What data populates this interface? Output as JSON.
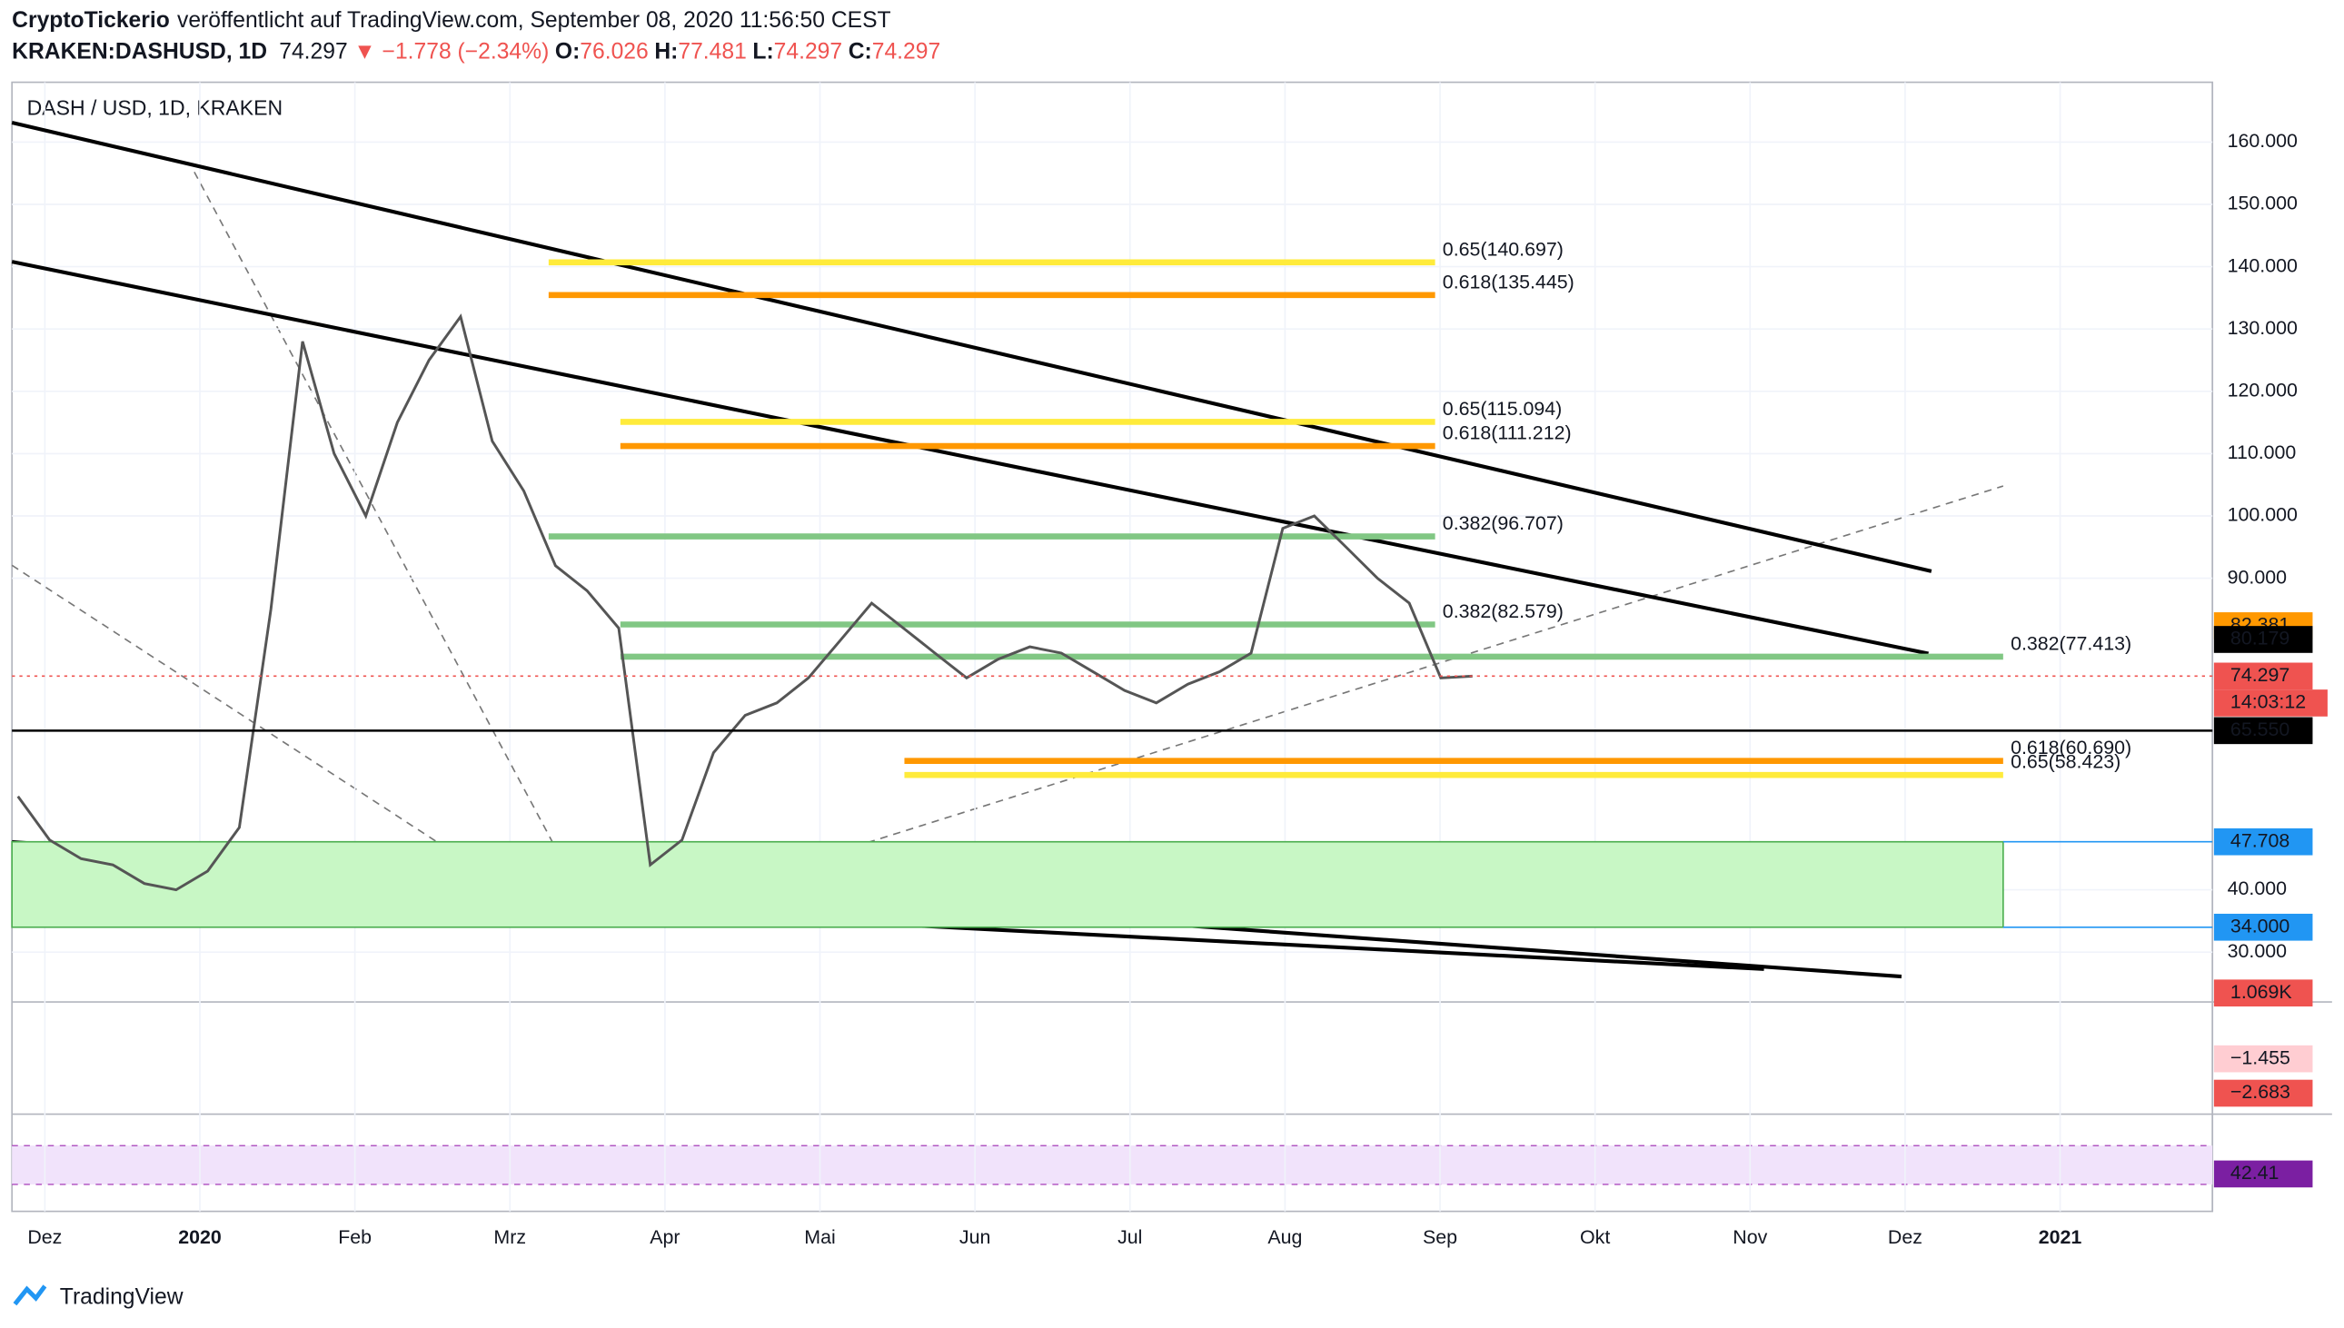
{
  "header": {
    "publisher": "CryptoTickerio",
    "published": "veröffentlicht auf TradingView.com, September 08, 2020 11:56:50 CEST",
    "symbol": "KRAKEN:DASHUSD, 1D",
    "last": "74.297",
    "change": "▼ −1.778 (−2.34%)",
    "ohlc": [
      {
        "key": "O:",
        "value": "76.026"
      },
      {
        "key": "H:",
        "value": "77.481"
      },
      {
        "key": "L:",
        "value": "74.297"
      },
      {
        "key": "C:",
        "value": "74.297"
      }
    ]
  },
  "chart_data": {
    "type": "line",
    "title": "DASH / USD, 1D, KRAKEN",
    "color": "#555555",
    "values": [
      55,
      48,
      45,
      44,
      41,
      40,
      43,
      50,
      85,
      128,
      110,
      100,
      115,
      125,
      132,
      112,
      104,
      92,
      88,
      82,
      44,
      48,
      62,
      68,
      70,
      74,
      80,
      86,
      82,
      78,
      74,
      77,
      79,
      78,
      75,
      72,
      70,
      73,
      75,
      78,
      98,
      100,
      95,
      90,
      86,
      74,
      74.297
    ],
    "ylim": [
      22,
      169.6
    ],
    "yticks": [
      {
        "value": 160,
        "label": "160.000"
      },
      {
        "value": 150,
        "label": "150.000"
      },
      {
        "value": 140,
        "label": "140.000"
      },
      {
        "value": 130,
        "label": "130.000"
      },
      {
        "value": 120,
        "label": "120.000"
      },
      {
        "value": 110,
        "label": "110.000"
      },
      {
        "value": 100,
        "label": "100.000"
      },
      {
        "value": 90,
        "label": "90.000"
      },
      {
        "value": 40,
        "label": "40.000"
      },
      {
        "value": 30,
        "label": "30.000"
      }
    ],
    "time_labels": [
      "Dez",
      "2020",
      "Feb",
      "Mrz",
      "Apr",
      "Mai",
      "Jun",
      "Jul",
      "Aug",
      "Sep",
      "Okt",
      "Nov",
      "Dez",
      "2021"
    ],
    "fib_levels": [
      {
        "label": "0.65(140.697)",
        "value": 140.697,
        "color": "#ffeb3b",
        "text_color": "#e6c800"
      },
      {
        "label": "0.618(135.445)",
        "value": 135.445,
        "color": "#ff9800",
        "text_color": "#f57c00"
      },
      {
        "label": "0.65(115.094)",
        "value": 115.094,
        "color": "#ffeb3b",
        "text_color": "#e6c800"
      },
      {
        "label": "0.618(111.212)",
        "value": 111.212,
        "color": "#ff9800",
        "text_color": "#f57c00"
      },
      {
        "label": "0.382(96.707)",
        "value": 96.707,
        "color": "#81c784",
        "text_color": "#66bb6a"
      },
      {
        "label": "0.382(82.579)",
        "value": 82.579,
        "color": "#81c784",
        "text_color": "#66bb6a"
      },
      {
        "label": "0.382(77.413)",
        "value": 77.413,
        "color": "#81c784",
        "text_color": "#66bb6a"
      },
      {
        "label": "0.618(60.690)",
        "value": 60.69,
        "color": "#ff9800",
        "text_color": "#f57c00"
      },
      {
        "label": "0.65(58.423)",
        "value": 58.423,
        "color": "#ffeb3b",
        "text_color": "#e6c800"
      }
    ],
    "zone": {
      "top": 47.708,
      "bottom": 34,
      "color": "#c8f7c5"
    },
    "price_tags": [
      {
        "label": "82.381",
        "value": 82.381,
        "bg": "#ff9800",
        "fg": "#000000"
      },
      {
        "label": "80.179",
        "value": 80.179,
        "bg": "#000000",
        "fg": "#ffffff"
      },
      {
        "label": "74.297",
        "value": 74.297,
        "bg": "#ef5350",
        "fg": "#ffffff"
      },
      {
        "label": "65.550",
        "value": 65.55,
        "bg": "#000000",
        "fg": "#ffffff"
      },
      {
        "label": "47.708",
        "value": 47.708,
        "bg": "#2196f3",
        "fg": "#ffffff"
      },
      {
        "label": "34.000",
        "value": 34,
        "bg": "#2196f3",
        "fg": "#ffffff"
      }
    ],
    "countdown": "14:03:12",
    "volume_tag": "1.069K",
    "macd_tags": [
      "−1.455",
      "−2.683"
    ],
    "rsi_tag": "42.41"
  },
  "brand": "TradingView"
}
